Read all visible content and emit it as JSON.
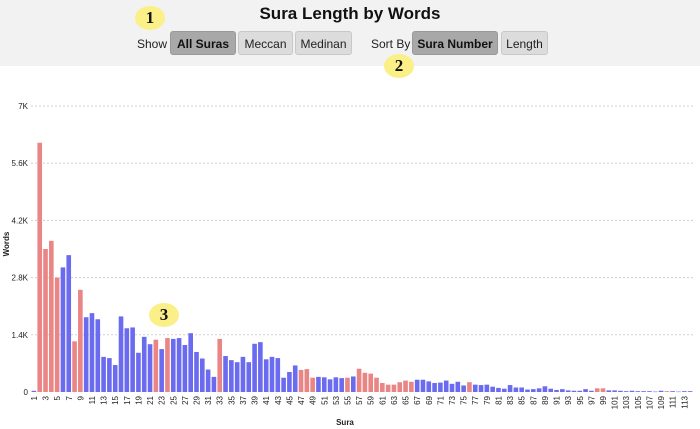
{
  "header": {
    "title": "Sura Length by Words",
    "show_label": "Show",
    "show_options": [
      "All Suras",
      "Meccan",
      "Medinan"
    ],
    "show_selected": "All Suras",
    "sort_label": "Sort By",
    "sort_options": [
      "Sura Number",
      "Length"
    ],
    "sort_selected": "Sura Number"
  },
  "annotations": [
    "1",
    "2",
    "3"
  ],
  "colors": {
    "meccan": "#6b6bef",
    "medinan": "#ea8585",
    "grid": "#d0d0d0"
  },
  "chart_data": {
    "type": "bar",
    "title": "Sura Length by Words",
    "xlabel": "Sura",
    "ylabel": "Words",
    "ylim": [
      0,
      7000
    ],
    "yticks": [
      0,
      1400,
      2800,
      4200,
      5600,
      7000
    ],
    "ytick_labels": [
      "0",
      "1.4K",
      "2.8K",
      "4.2K",
      "5.6K",
      "7K"
    ],
    "xtick_labels": [
      "1",
      "3",
      "5",
      "7",
      "9",
      "11",
      "13",
      "15",
      "17",
      "19",
      "21",
      "23",
      "25",
      "27",
      "29",
      "31",
      "33",
      "35",
      "37",
      "39",
      "41",
      "43",
      "45",
      "47",
      "49",
      "51",
      "53",
      "55",
      "57",
      "59",
      "61",
      "63",
      "65",
      "67",
      "69",
      "71",
      "73",
      "75",
      "77",
      "79",
      "81",
      "83",
      "85",
      "87",
      "89",
      "91",
      "93",
      "95",
      "97",
      "99",
      "101",
      "103",
      "105",
      "107",
      "109",
      "111",
      "113"
    ],
    "grid": true,
    "legend": "none",
    "series": [
      {
        "category": "Meccan",
        "x": [
          1,
          6,
          7,
          10,
          11,
          12,
          13,
          14,
          15,
          16,
          17,
          18,
          19,
          20,
          21,
          23,
          25,
          26,
          27,
          28,
          29,
          30,
          31,
          32,
          34,
          35,
          36,
          37,
          38,
          39,
          40,
          41,
          42,
          43,
          44,
          45,
          46,
          50,
          51,
          52,
          53,
          54,
          56,
          67,
          68,
          69,
          70,
          71,
          72,
          73,
          74,
          75,
          77,
          78,
          79,
          80,
          81,
          82,
          83,
          84,
          85,
          86,
          87,
          88,
          89,
          90,
          91,
          92,
          93,
          94,
          95,
          96,
          97,
          100,
          101,
          102,
          103,
          104,
          105,
          106,
          107,
          108,
          109,
          111,
          112,
          113,
          114
        ],
        "values": [
          29,
          3050,
          3350,
          1830,
          1930,
          1780,
          860,
          830,
          660,
          1850,
          1560,
          1580,
          960,
          1350,
          1170,
          1050,
          1300,
          1320,
          1150,
          1440,
          980,
          820,
          550,
          370,
          880,
          780,
          730,
          860,
          730,
          1180,
          1220,
          800,
          860,
          830,
          350,
          490,
          650,
          370,
          360,
          310,
          360,
          340,
          380,
          300,
          300,
          260,
          220,
          230,
          280,
          200,
          250,
          160,
          180,
          170,
          180,
          130,
          100,
          80,
          170,
          110,
          110,
          60,
          70,
          90,
          140,
          80,
          50,
          70,
          40,
          30,
          30,
          70,
          30,
          40,
          40,
          30,
          20,
          30,
          20,
          20,
          20,
          10,
          30,
          20,
          10,
          20,
          20
        ]
      },
      {
        "category": "Medinan",
        "x": [
          2,
          3,
          4,
          5,
          8,
          9,
          22,
          24,
          33,
          47,
          48,
          49,
          55,
          57,
          58,
          59,
          60,
          61,
          62,
          63,
          64,
          65,
          66,
          76,
          98,
          99,
          110
        ],
        "values": [
          6100,
          3500,
          3700,
          2800,
          1240,
          2500,
          1280,
          1320,
          1300,
          540,
          560,
          350,
          350,
          570,
          470,
          450,
          350,
          220,
          180,
          180,
          240,
          280,
          250,
          240,
          90,
          90,
          20
        ]
      }
    ]
  }
}
